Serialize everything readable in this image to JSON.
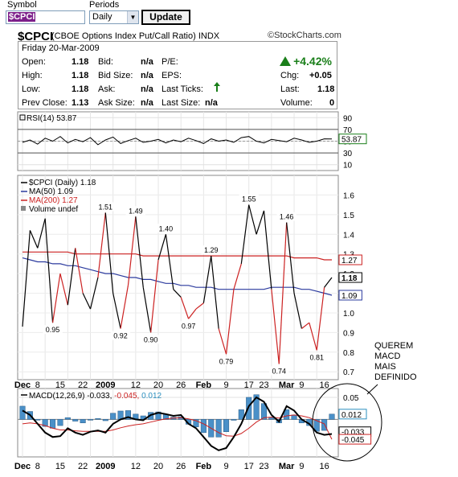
{
  "form": {
    "symbol_label": "Symbol",
    "periods_label": "Periods",
    "symbol_value": "$CPCI",
    "period_value": "Daily",
    "update_label": "Update"
  },
  "header": {
    "title": "$CPCI",
    "subtitle": "(CBOE Options Index Put/Call Ratio)",
    "exchange": "INDX",
    "brand": "StockCharts.com",
    "brand_symbol": "©"
  },
  "quote": {
    "date": "Friday 20-Mar-2009",
    "rows": [
      {
        "l1": "Open:",
        "v1": "1.18",
        "l2": "Bid:",
        "v2": "n/a",
        "l3": "P/E:",
        "v3": "",
        "l4": "",
        "v4": ""
      },
      {
        "l1": "High:",
        "v1": "1.18",
        "l2": "Bid Size:",
        "v2": "n/a",
        "l3": "EPS:",
        "v3": "",
        "l4": "Chg:",
        "v4": "+0.05"
      },
      {
        "l1": "Low:",
        "v1": "1.18",
        "l2": "Ask:",
        "v2": "n/a",
        "l3": "Last Ticks:",
        "v3": "",
        "l4": "Last:",
        "v4": "1.18"
      },
      {
        "l1": "Prev Close:",
        "v1": "1.13",
        "l2": "Ask Size:",
        "v2": "n/a",
        "l3": "Last Size:",
        "v3": "n/a",
        "l4": "Volume:",
        "v4": "0"
      }
    ],
    "pct_change": "+4.42%",
    "up_color": "#1a7f1a"
  },
  "annotation": {
    "lines": [
      "QUEREM",
      "MACD",
      "MAIS",
      "DEFINIDO"
    ]
  },
  "chart_data": [
    {
      "type": "line",
      "panel": "rsi",
      "legend": "RSI(14) 53.87",
      "last_label": "53.87",
      "y_ticks": [
        90,
        70,
        50,
        30,
        10
      ],
      "ylim": [
        0,
        100
      ],
      "reference_lines": [
        70,
        30
      ],
      "series": [
        {
          "name": "RSI(14)",
          "color": "#000000",
          "values": [
            48,
            52,
            45,
            55,
            50,
            58,
            47,
            53,
            49,
            56,
            44,
            52,
            57,
            46,
            51,
            55,
            48,
            50,
            53,
            47,
            52,
            49,
            55,
            51,
            46,
            54,
            50,
            52,
            48,
            56,
            58,
            50,
            47,
            53,
            51,
            49,
            55,
            52,
            48,
            50,
            54,
            53.87
          ]
        }
      ]
    },
    {
      "type": "line",
      "panel": "price",
      "legend": [
        "$CPCI (Daily) 1.18",
        "MA(50) 1.09",
        "MA(200) 1.27",
        "Volume undef"
      ],
      "y_ticks": [
        1.6,
        1.5,
        1.4,
        1.3,
        1.2,
        1.1,
        1.0,
        0.9,
        0.8,
        0.7
      ],
      "ylim": [
        0.66,
        1.7
      ],
      "last_labels": {
        "price": "1.18",
        "ma50": "1.09",
        "ma200": "1.27"
      },
      "point_labels": [
        {
          "i": 4,
          "text": "0.95",
          "pos": "below"
        },
        {
          "i": 11,
          "text": "1.51",
          "pos": "above"
        },
        {
          "i": 13,
          "text": "0.92",
          "pos": "below"
        },
        {
          "i": 15,
          "text": "1.49",
          "pos": "above"
        },
        {
          "i": 17,
          "text": "0.90",
          "pos": "below"
        },
        {
          "i": 19,
          "text": "1.40",
          "pos": "above"
        },
        {
          "i": 22,
          "text": "0.97",
          "pos": "below"
        },
        {
          "i": 25,
          "text": "1.29",
          "pos": "above"
        },
        {
          "i": 27,
          "text": "0.79",
          "pos": "below"
        },
        {
          "i": 30,
          "text": "1.55",
          "pos": "above"
        },
        {
          "i": 34,
          "text": "0.74",
          "pos": "below"
        },
        {
          "i": 35,
          "text": "1.46",
          "pos": "above"
        },
        {
          "i": 39,
          "text": "0.81",
          "pos": "below"
        }
      ],
      "series": [
        {
          "name": "$CPCI",
          "color": "#000000",
          "values": [
            0.93,
            1.42,
            1.33,
            1.48,
            0.95,
            1.2,
            1.04,
            1.33,
            1.1,
            1.02,
            1.18,
            1.51,
            1.1,
            0.92,
            1.14,
            1.49,
            1.13,
            0.9,
            1.27,
            1.4,
            1.12,
            1.08,
            0.97,
            1.02,
            1.05,
            1.29,
            0.92,
            0.79,
            1.12,
            1.25,
            1.55,
            1.4,
            1.52,
            1.12,
            0.74,
            1.46,
            1.1,
            0.92,
            0.95,
            0.81,
            1.13,
            1.18
          ],
          "red_segments": [
            4,
            5,
            7,
            10,
            13,
            14,
            17,
            21,
            22,
            23,
            26,
            27,
            28,
            33,
            34,
            37,
            38,
            39
          ]
        },
        {
          "name": "MA(50)",
          "color": "#2b3a9e",
          "values": [
            1.28,
            1.27,
            1.26,
            1.26,
            1.25,
            1.25,
            1.24,
            1.24,
            1.23,
            1.22,
            1.21,
            1.2,
            1.2,
            1.19,
            1.18,
            1.18,
            1.17,
            1.17,
            1.16,
            1.15,
            1.15,
            1.14,
            1.14,
            1.13,
            1.13,
            1.13,
            1.12,
            1.12,
            1.12,
            1.12,
            1.12,
            1.12,
            1.12,
            1.13,
            1.13,
            1.13,
            1.13,
            1.12,
            1.12,
            1.11,
            1.1,
            1.09
          ]
        },
        {
          "name": "MA(200)",
          "color": "#cc2222",
          "values": [
            1.31,
            1.31,
            1.31,
            1.31,
            1.31,
            1.31,
            1.31,
            1.3,
            1.3,
            1.3,
            1.3,
            1.3,
            1.3,
            1.3,
            1.3,
            1.3,
            1.29,
            1.29,
            1.29,
            1.29,
            1.29,
            1.29,
            1.29,
            1.29,
            1.29,
            1.29,
            1.29,
            1.29,
            1.29,
            1.29,
            1.29,
            1.29,
            1.29,
            1.29,
            1.29,
            1.29,
            1.28,
            1.28,
            1.28,
            1.28,
            1.27,
            1.27
          ]
        }
      ]
    },
    {
      "type": "bar",
      "panel": "macd",
      "legend_prefix": "MACD(12,26,9)",
      "legend_values": [
        "-0.033",
        "-0.045",
        "0.012"
      ],
      "legend_colors": [
        "#000000",
        "#cc2222",
        "#2b8fbf"
      ],
      "y_ticks": [
        0.05,
        0.0
      ],
      "ylim": [
        -0.085,
        0.07
      ],
      "last_labels": [
        "0.012",
        "-0.033",
        "-0.045"
      ],
      "series": [
        {
          "name": "MACD",
          "color": "#000000",
          "values": [
            0.02,
            0.01,
            -0.01,
            -0.03,
            -0.04,
            -0.038,
            -0.02,
            -0.03,
            -0.035,
            -0.028,
            -0.025,
            -0.03,
            -0.01,
            0.0,
            0.005,
            0.0,
            -0.002,
            0.01,
            0.015,
            0.012,
            0.008,
            0.01,
            -0.01,
            -0.02,
            -0.04,
            -0.06,
            -0.07,
            -0.065,
            -0.04,
            -0.01,
            0.03,
            0.05,
            0.04,
            0.01,
            -0.005,
            0.03,
            0.02,
            0.0,
            -0.01,
            -0.03,
            -0.035,
            -0.033
          ]
        },
        {
          "name": "Signal",
          "color": "#cc2222",
          "values": [
            -0.01,
            -0.008,
            -0.01,
            -0.014,
            -0.02,
            -0.024,
            -0.024,
            -0.026,
            -0.027,
            -0.027,
            -0.027,
            -0.027,
            -0.024,
            -0.019,
            -0.015,
            -0.012,
            -0.01,
            -0.006,
            -0.002,
            0.001,
            0.003,
            0.004,
            0.001,
            -0.003,
            -0.01,
            -0.02,
            -0.03,
            -0.037,
            -0.038,
            -0.032,
            -0.02,
            -0.006,
            0.004,
            0.005,
            0.003,
            0.008,
            0.01,
            0.008,
            0.004,
            -0.003,
            -0.01,
            -0.045
          ]
        },
        {
          "name": "Histogram",
          "color": "#4a90c8",
          "values": [
            0.03,
            0.018,
            0.0,
            -0.016,
            -0.02,
            -0.014,
            0.004,
            -0.004,
            -0.008,
            -0.001,
            0.002,
            -0.003,
            0.014,
            0.019,
            0.02,
            0.012,
            0.008,
            0.016,
            0.017,
            0.011,
            0.005,
            0.006,
            -0.011,
            -0.017,
            -0.03,
            -0.04,
            -0.04,
            -0.028,
            -0.002,
            0.022,
            0.05,
            0.056,
            0.036,
            0.005,
            -0.008,
            0.022,
            0.01,
            -0.008,
            -0.014,
            -0.027,
            -0.025,
            0.012
          ]
        }
      ]
    }
  ],
  "x_axis": {
    "labels": [
      {
        "i": 0,
        "text": "Dec",
        "bold": true
      },
      {
        "i": 2,
        "text": "8",
        "bold": false
      },
      {
        "i": 5,
        "text": "15",
        "bold": false
      },
      {
        "i": 8,
        "text": "22",
        "bold": false
      },
      {
        "i": 11,
        "text": "2009",
        "bold": true
      },
      {
        "i": 15,
        "text": "12",
        "bold": false
      },
      {
        "i": 18,
        "text": "20",
        "bold": false
      },
      {
        "i": 21,
        "text": "26",
        "bold": false
      },
      {
        "i": 24,
        "text": "Feb",
        "bold": true
      },
      {
        "i": 27,
        "text": "9",
        "bold": false
      },
      {
        "i": 30,
        "text": "17",
        "bold": false
      },
      {
        "i": 32,
        "text": "23",
        "bold": false
      },
      {
        "i": 35,
        "text": "Mar",
        "bold": true
      },
      {
        "i": 37,
        "text": "9",
        "bold": false
      },
      {
        "i": 40,
        "text": "16",
        "bold": false
      }
    ]
  }
}
